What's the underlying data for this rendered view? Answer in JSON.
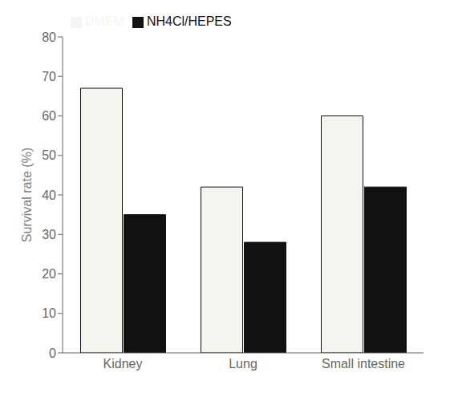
{
  "chart_data": {
    "type": "bar",
    "categories": [
      "Kidney",
      "Lung",
      "Small intestine"
    ],
    "series": [
      {
        "name": "DMEM",
        "color": "#f5f5f0",
        "values": [
          67,
          42,
          60
        ]
      },
      {
        "name": "NH4Cl/HEPES",
        "color": "#111111",
        "values": [
          35,
          28,
          42
        ]
      }
    ],
    "ylabel": "Survival rate (%)",
    "ylim": [
      0,
      80
    ],
    "yticks": [
      0,
      10,
      20,
      30,
      40,
      50,
      60,
      70,
      80
    ],
    "grid": false,
    "legend": "upper left"
  }
}
